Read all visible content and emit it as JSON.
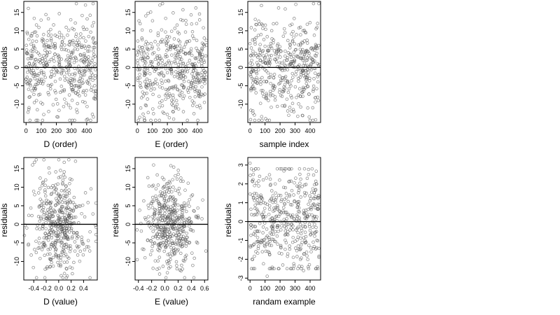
{
  "chart_data": [
    {
      "type": "scatter",
      "xlabel": "D (order)",
      "ylabel": "residuals",
      "xlim": [
        -15,
        470
      ],
      "ylim": [
        -15,
        18
      ],
      "xticks": [
        0,
        100,
        200,
        300,
        400
      ],
      "yticks": [
        -10,
        -5,
        0,
        5,
        10,
        15
      ],
      "hline": 0,
      "n_points": 460,
      "points": [
        [
          0,
          -3.2
        ],
        [
          15,
          16.1
        ],
        [
          37,
          2.5
        ],
        [
          55,
          9.6
        ],
        [
          62,
          -5.8
        ],
        [
          80,
          3.9
        ],
        [
          99,
          12.9
        ],
        [
          116,
          -1.4
        ],
        [
          133,
          1.2
        ],
        [
          150,
          -7.4
        ],
        [
          166,
          8.8
        ],
        [
          186,
          -2.1
        ],
        [
          200,
          -0.6
        ],
        [
          218,
          -11.7
        ],
        [
          234,
          6.1
        ],
        [
          252,
          4.9
        ],
        [
          270,
          -3.1
        ],
        [
          288,
          1.4
        ],
        [
          305,
          10.6
        ],
        [
          323,
          -5.0
        ],
        [
          340,
          7.4
        ],
        [
          358,
          3.5
        ],
        [
          374,
          -9.3
        ],
        [
          392,
          17.0
        ],
        [
          410,
          0.4
        ],
        [
          425,
          -0.6
        ],
        [
          437,
          11.3
        ],
        [
          445,
          -13.5
        ],
        [
          455,
          3.0
        ],
        [
          460,
          -6.6
        ]
      ]
    },
    {
      "type": "scatter",
      "xlabel": "E (order)",
      "ylabel": "residuals",
      "xlim": [
        -15,
        470
      ],
      "ylim": [
        -15,
        18
      ],
      "xticks": [
        0,
        100,
        200,
        300,
        400
      ],
      "yticks": [
        -10,
        -5,
        0,
        5,
        10,
        15
      ],
      "hline": 0,
      "n_points": 460,
      "points": [
        [
          0,
          3.4
        ],
        [
          16,
          -13.6
        ],
        [
          32,
          10.2
        ],
        [
          50,
          -2.0
        ],
        [
          68,
          5.0
        ],
        [
          85,
          0.5
        ],
        [
          103,
          -11.3
        ],
        [
          120,
          2.2
        ],
        [
          138,
          8.7
        ],
        [
          150,
          17.0
        ],
        [
          165,
          -4.3
        ],
        [
          186,
          0.7
        ],
        [
          203,
          7.2
        ],
        [
          220,
          -0.6
        ],
        [
          237,
          -12.0
        ],
        [
          254,
          3.7
        ],
        [
          270,
          9.6
        ],
        [
          290,
          -2.4
        ],
        [
          306,
          1.2
        ],
        [
          323,
          12.8
        ],
        [
          340,
          -5.6
        ],
        [
          356,
          4.4
        ],
        [
          373,
          -0.9
        ],
        [
          390,
          16.2
        ],
        [
          407,
          -7.1
        ],
        [
          425,
          2.0
        ],
        [
          440,
          10.8
        ],
        [
          452,
          -3.3
        ],
        [
          460,
          6.1
        ]
      ]
    },
    {
      "type": "scatter",
      "xlabel": "sample index",
      "ylabel": "residuals",
      "xlim": [
        -15,
        470
      ],
      "ylim": [
        -15,
        18
      ],
      "xticks": [
        0,
        100,
        200,
        300,
        400
      ],
      "yticks": [
        -10,
        -5,
        0,
        5,
        10,
        15
      ],
      "hline": 0,
      "n_points": 460,
      "points": [
        [
          0,
          6.5
        ],
        [
          18,
          -4.2
        ],
        [
          35,
          13.1
        ],
        [
          52,
          0.6
        ],
        [
          70,
          -9.8
        ],
        [
          88,
          3.2
        ],
        [
          104,
          10.4
        ],
        [
          120,
          -1.5
        ],
        [
          138,
          5.7
        ],
        [
          154,
          -6.2
        ],
        [
          170,
          2.1
        ],
        [
          190,
          16.2
        ],
        [
          205,
          -0.4
        ],
        [
          222,
          8.5
        ],
        [
          238,
          -3.6
        ],
        [
          255,
          4.0
        ],
        [
          272,
          -7.7
        ],
        [
          290,
          1.2
        ],
        [
          305,
          17.2
        ],
        [
          318,
          -13.3
        ],
        [
          336,
          6.4
        ],
        [
          352,
          -0.9
        ],
        [
          368,
          9.6
        ],
        [
          386,
          -5.2
        ],
        [
          402,
          2.6
        ],
        [
          418,
          -11.0
        ],
        [
          434,
          5.3
        ],
        [
          450,
          -2.5
        ],
        [
          460,
          0.8
        ]
      ]
    },
    {
      "type": "scatter",
      "xlabel": "D (value)",
      "ylabel": "residuals",
      "xlim": [
        -0.56,
        0.62
      ],
      "ylim": [
        -15,
        18
      ],
      "xticks": [
        -0.4,
        -0.2,
        0.0,
        0.2,
        0.4
      ],
      "xtick_labels": [
        "-0.4",
        "-0.2",
        "0.0",
        "0.2",
        "0.4"
      ],
      "yticks": [
        -10,
        -5,
        0,
        5,
        10,
        15
      ],
      "hline": 0,
      "n_points": 460,
      "points": [
        [
          -0.55,
          -3.0
        ],
        [
          -0.48,
          2.4
        ],
        [
          -0.42,
          16.0
        ],
        [
          -0.36,
          -7.6
        ],
        [
          -0.3,
          9.6
        ],
        [
          -0.26,
          -1.2
        ],
        [
          -0.2,
          5.6
        ],
        [
          -0.14,
          -11.5
        ],
        [
          -0.1,
          3.0
        ],
        [
          -0.05,
          -5.0
        ],
        [
          0.0,
          1.0
        ],
        [
          0.03,
          12.8
        ],
        [
          0.06,
          -2.0
        ],
        [
          0.1,
          7.0
        ],
        [
          0.14,
          -8.8
        ],
        [
          0.18,
          4.1
        ],
        [
          0.22,
          -13.3
        ],
        [
          0.27,
          17.0
        ],
        [
          0.32,
          0.4
        ],
        [
          0.37,
          -4.2
        ],
        [
          0.43,
          8.5
        ],
        [
          0.48,
          -6.1
        ],
        [
          0.55,
          2.8
        ],
        [
          0.6,
          -0.8
        ]
      ]
    },
    {
      "type": "scatter",
      "xlabel": "E (value)",
      "ylabel": "residuals",
      "xlim": [
        -0.45,
        0.65
      ],
      "ylim": [
        -15,
        18
      ],
      "xticks": [
        -0.4,
        -0.2,
        0.0,
        0.2,
        0.4,
        0.6
      ],
      "xtick_labels": [
        "-0.4",
        "-0.2",
        "0.0",
        "0.2",
        "0.4",
        "0.6"
      ],
      "yticks": [
        -10,
        -5,
        0,
        5,
        10,
        15
      ],
      "hline": 0,
      "n_points": 460,
      "points": [
        [
          -0.42,
          -1.5
        ],
        [
          -0.38,
          3.8
        ],
        [
          -0.3,
          -9.0
        ],
        [
          -0.24,
          10.3
        ],
        [
          -0.18,
          -3.5
        ],
        [
          -0.12,
          6.5
        ],
        [
          -0.08,
          -13.4
        ],
        [
          -0.04,
          1.0
        ],
        [
          0.0,
          -5.6
        ],
        [
          0.02,
          4.3
        ],
        [
          0.06,
          -11.8
        ],
        [
          0.09,
          15.8
        ],
        [
          0.12,
          -1.0
        ],
        [
          0.16,
          9.2
        ],
        [
          0.2,
          -6.8
        ],
        [
          0.26,
          2.6
        ],
        [
          0.33,
          -2.4
        ],
        [
          0.4,
          7.6
        ],
        [
          0.48,
          -4.8
        ],
        [
          0.56,
          1.5
        ],
        [
          0.62,
          -7.2
        ]
      ]
    },
    {
      "type": "scatter",
      "xlabel": "randam example",
      "ylabel": "residuals",
      "xlim": [
        -15,
        470
      ],
      "ylim": [
        -3.1,
        3.4
      ],
      "xticks": [
        0,
        100,
        200,
        300,
        400
      ],
      "yticks": [
        -3,
        -2,
        -1,
        0,
        1,
        2,
        3
      ],
      "hline": 0,
      "n_points": 460,
      "points": [
        [
          0,
          3.1
        ],
        [
          14,
          -2.0
        ],
        [
          30,
          1.5
        ],
        [
          48,
          -0.5
        ],
        [
          64,
          2.4
        ],
        [
          82,
          -1.6
        ],
        [
          98,
          0.7
        ],
        [
          114,
          -2.9
        ],
        [
          132,
          1.1
        ],
        [
          150,
          -0.2
        ],
        [
          168,
          2.0
        ],
        [
          184,
          -1.2
        ],
        [
          200,
          0.4
        ],
        [
          218,
          -2.3
        ],
        [
          236,
          1.8
        ],
        [
          252,
          -0.7
        ],
        [
          270,
          0.9
        ],
        [
          288,
          -1.9
        ],
        [
          304,
          2.3
        ],
        [
          320,
          -0.3
        ],
        [
          338,
          1.3
        ],
        [
          356,
          -2.6
        ],
        [
          372,
          0.6
        ],
        [
          390,
          2.5
        ],
        [
          406,
          -1.4
        ],
        [
          422,
          0.2
        ],
        [
          438,
          1.7
        ],
        [
          450,
          -2.4
        ],
        [
          460,
          0.9
        ]
      ]
    }
  ]
}
